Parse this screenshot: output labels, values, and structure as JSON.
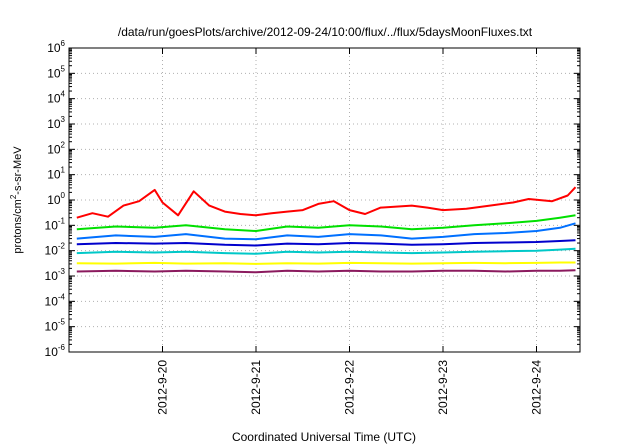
{
  "chart_data": {
    "type": "line",
    "title": "/data/run/goesPlots/archive/2012-09-24/10:00/flux/../flux/5daysMoonFluxes.txt",
    "xlabel": "Coordinated Universal Time (UTC)",
    "ylabel": {
      "prefix": "protons/cm",
      "sup": "2",
      "suffix": "-s-sr-MeV"
    },
    "y_scale": "log",
    "ylim_exp": [
      -6,
      6
    ],
    "y_ticks": [
      {
        "base": "10",
        "exp": "6"
      },
      {
        "base": "10",
        "exp": "5"
      },
      {
        "base": "10",
        "exp": "4"
      },
      {
        "base": "10",
        "exp": "3"
      },
      {
        "base": "10",
        "exp": "2"
      },
      {
        "base": "10",
        "exp": "1"
      },
      {
        "base": "10",
        "exp": "0"
      },
      {
        "base": "10",
        "exp": "-1"
      },
      {
        "base": "10",
        "exp": "-2"
      },
      {
        "base": "10",
        "exp": "-3"
      },
      {
        "base": "10",
        "exp": "-4"
      },
      {
        "base": "10",
        "exp": "-5"
      },
      {
        "base": "10",
        "exp": "-6"
      }
    ],
    "x_ticks": [
      "2012-9-20",
      "2012-9-21",
      "2012-9-22",
      "2012-9-23",
      "2012-9-24"
    ],
    "grid": true,
    "series": [
      {
        "color": "#ff0000",
        "values": [
          [
            "2012-9-19 02:00",
            0.2
          ],
          [
            "2012-9-19 06:00",
            0.3
          ],
          [
            "2012-9-19 10:00",
            0.22
          ],
          [
            "2012-9-19 14:00",
            0.6
          ],
          [
            "2012-9-19 18:00",
            0.9
          ],
          [
            "2012-9-19 22:00",
            2.5
          ],
          [
            "2012-9-20 00:00",
            0.8
          ],
          [
            "2012-9-20 04:00",
            0.25
          ],
          [
            "2012-9-20 08:00",
            2.2
          ],
          [
            "2012-9-20 12:00",
            0.6
          ],
          [
            "2012-9-20 16:00",
            0.35
          ],
          [
            "2012-9-20 20:00",
            0.28
          ],
          [
            "2012-9-21 00:00",
            0.25
          ],
          [
            "2012-9-21 04:00",
            0.3
          ],
          [
            "2012-9-21 08:00",
            0.35
          ],
          [
            "2012-9-21 12:00",
            0.4
          ],
          [
            "2012-9-21 16:00",
            0.7
          ],
          [
            "2012-9-21 20:00",
            0.9
          ],
          [
            "2012-9-22 00:00",
            0.4
          ],
          [
            "2012-9-22 04:00",
            0.28
          ],
          [
            "2012-9-22 08:00",
            0.5
          ],
          [
            "2012-9-22 12:00",
            0.55
          ],
          [
            "2012-9-22 16:00",
            0.6
          ],
          [
            "2012-9-22 20:00",
            0.5
          ],
          [
            "2012-9-23 00:00",
            0.4
          ],
          [
            "2012-9-23 06:00",
            0.45
          ],
          [
            "2012-9-23 12:00",
            0.6
          ],
          [
            "2012-9-23 18:00",
            0.8
          ],
          [
            "2012-9-23 22:00",
            1.1
          ],
          [
            "2012-9-24 04:00",
            0.9
          ],
          [
            "2012-9-24 08:00",
            1.5
          ],
          [
            "2012-9-24 10:00",
            3.2
          ]
        ]
      },
      {
        "color": "#00e000",
        "values": [
          [
            "2012-9-19 02:00",
            0.07
          ],
          [
            "2012-9-19 12:00",
            0.09
          ],
          [
            "2012-9-19 22:00",
            0.08
          ],
          [
            "2012-9-20 06:00",
            0.1
          ],
          [
            "2012-9-20 16:00",
            0.07
          ],
          [
            "2012-9-21 00:00",
            0.06
          ],
          [
            "2012-9-21 08:00",
            0.09
          ],
          [
            "2012-9-21 16:00",
            0.08
          ],
          [
            "2012-9-22 00:00",
            0.1
          ],
          [
            "2012-9-22 08:00",
            0.09
          ],
          [
            "2012-9-22 16:00",
            0.07
          ],
          [
            "2012-9-23 00:00",
            0.08
          ],
          [
            "2012-9-23 08:00",
            0.1
          ],
          [
            "2012-9-23 16:00",
            0.12
          ],
          [
            "2012-9-24 00:00",
            0.15
          ],
          [
            "2012-9-24 06:00",
            0.2
          ],
          [
            "2012-9-24 10:00",
            0.25
          ]
        ]
      },
      {
        "color": "#0070ff",
        "values": [
          [
            "2012-9-19 02:00",
            0.03
          ],
          [
            "2012-9-19 12:00",
            0.04
          ],
          [
            "2012-9-19 22:00",
            0.035
          ],
          [
            "2012-9-20 06:00",
            0.045
          ],
          [
            "2012-9-20 16:00",
            0.03
          ],
          [
            "2012-9-21 00:00",
            0.028
          ],
          [
            "2012-9-21 08:00",
            0.04
          ],
          [
            "2012-9-21 16:00",
            0.035
          ],
          [
            "2012-9-22 00:00",
            0.045
          ],
          [
            "2012-9-22 08:00",
            0.04
          ],
          [
            "2012-9-22 16:00",
            0.03
          ],
          [
            "2012-9-23 00:00",
            0.035
          ],
          [
            "2012-9-23 08:00",
            0.045
          ],
          [
            "2012-9-23 16:00",
            0.05
          ],
          [
            "2012-9-24 00:00",
            0.06
          ],
          [
            "2012-9-24 06:00",
            0.08
          ],
          [
            "2012-9-24 10:00",
            0.12
          ]
        ]
      },
      {
        "color": "#0000cc",
        "values": [
          [
            "2012-9-19 02:00",
            0.018
          ],
          [
            "2012-9-19 12:00",
            0.02
          ],
          [
            "2012-9-19 22:00",
            0.019
          ],
          [
            "2012-9-20 06:00",
            0.02
          ],
          [
            "2012-9-20 16:00",
            0.017
          ],
          [
            "2012-9-21 00:00",
            0.016
          ],
          [
            "2012-9-21 08:00",
            0.019
          ],
          [
            "2012-9-21 16:00",
            0.018
          ],
          [
            "2012-9-22 00:00",
            0.02
          ],
          [
            "2012-9-22 08:00",
            0.019
          ],
          [
            "2012-9-22 16:00",
            0.017
          ],
          [
            "2012-9-23 00:00",
            0.018
          ],
          [
            "2012-9-23 08:00",
            0.02
          ],
          [
            "2012-9-23 16:00",
            0.021
          ],
          [
            "2012-9-24 00:00",
            0.022
          ],
          [
            "2012-9-24 06:00",
            0.024
          ],
          [
            "2012-9-24 10:00",
            0.026
          ]
        ]
      },
      {
        "color": "#00c8c8",
        "values": [
          [
            "2012-9-19 02:00",
            0.008
          ],
          [
            "2012-9-19 12:00",
            0.009
          ],
          [
            "2012-9-19 22:00",
            0.0085
          ],
          [
            "2012-9-20 06:00",
            0.009
          ],
          [
            "2012-9-20 16:00",
            0.008
          ],
          [
            "2012-9-21 00:00",
            0.0075
          ],
          [
            "2012-9-21 08:00",
            0.009
          ],
          [
            "2012-9-21 16:00",
            0.0085
          ],
          [
            "2012-9-22 00:00",
            0.009
          ],
          [
            "2012-9-22 08:00",
            0.0085
          ],
          [
            "2012-9-22 16:00",
            0.008
          ],
          [
            "2012-9-23 00:00",
            0.0085
          ],
          [
            "2012-9-23 08:00",
            0.009
          ],
          [
            "2012-9-23 16:00",
            0.0095
          ],
          [
            "2012-9-24 00:00",
            0.01
          ],
          [
            "2012-9-24 06:00",
            0.011
          ],
          [
            "2012-9-24 10:00",
            0.012
          ]
        ]
      },
      {
        "color": "#ffff00",
        "values": [
          [
            "2012-9-19 02:00",
            0.0032
          ],
          [
            "2012-9-19 12:00",
            0.0031
          ],
          [
            "2012-9-19 22:00",
            0.0033
          ],
          [
            "2012-9-20 06:00",
            0.0031
          ],
          [
            "2012-9-20 16:00",
            0.0032
          ],
          [
            "2012-9-21 00:00",
            0.003
          ],
          [
            "2012-9-21 08:00",
            0.0032
          ],
          [
            "2012-9-21 16:00",
            0.0031
          ],
          [
            "2012-9-22 00:00",
            0.0033
          ],
          [
            "2012-9-22 08:00",
            0.0032
          ],
          [
            "2012-9-22 16:00",
            0.0031
          ],
          [
            "2012-9-23 00:00",
            0.0032
          ],
          [
            "2012-9-23 08:00",
            0.0033
          ],
          [
            "2012-9-23 16:00",
            0.0032
          ],
          [
            "2012-9-24 00:00",
            0.0033
          ],
          [
            "2012-9-24 06:00",
            0.0034
          ],
          [
            "2012-9-24 10:00",
            0.0034
          ]
        ]
      },
      {
        "color": "#8b1a5e",
        "values": [
          [
            "2012-9-19 02:00",
            0.0015
          ],
          [
            "2012-9-19 12:00",
            0.0016
          ],
          [
            "2012-9-19 22:00",
            0.0015
          ],
          [
            "2012-9-20 06:00",
            0.0016
          ],
          [
            "2012-9-20 16:00",
            0.0015
          ],
          [
            "2012-9-21 00:00",
            0.0014
          ],
          [
            "2012-9-21 08:00",
            0.0016
          ],
          [
            "2012-9-21 16:00",
            0.0015
          ],
          [
            "2012-9-22 00:00",
            0.0016
          ],
          [
            "2012-9-22 08:00",
            0.0015
          ],
          [
            "2012-9-22 16:00",
            0.0015
          ],
          [
            "2012-9-23 00:00",
            0.0016
          ],
          [
            "2012-9-23 08:00",
            0.0016
          ],
          [
            "2012-9-23 16:00",
            0.0015
          ],
          [
            "2012-9-24 00:00",
            0.0016
          ],
          [
            "2012-9-24 06:00",
            0.0016
          ],
          [
            "2012-9-24 10:00",
            0.0017
          ]
        ]
      }
    ]
  }
}
